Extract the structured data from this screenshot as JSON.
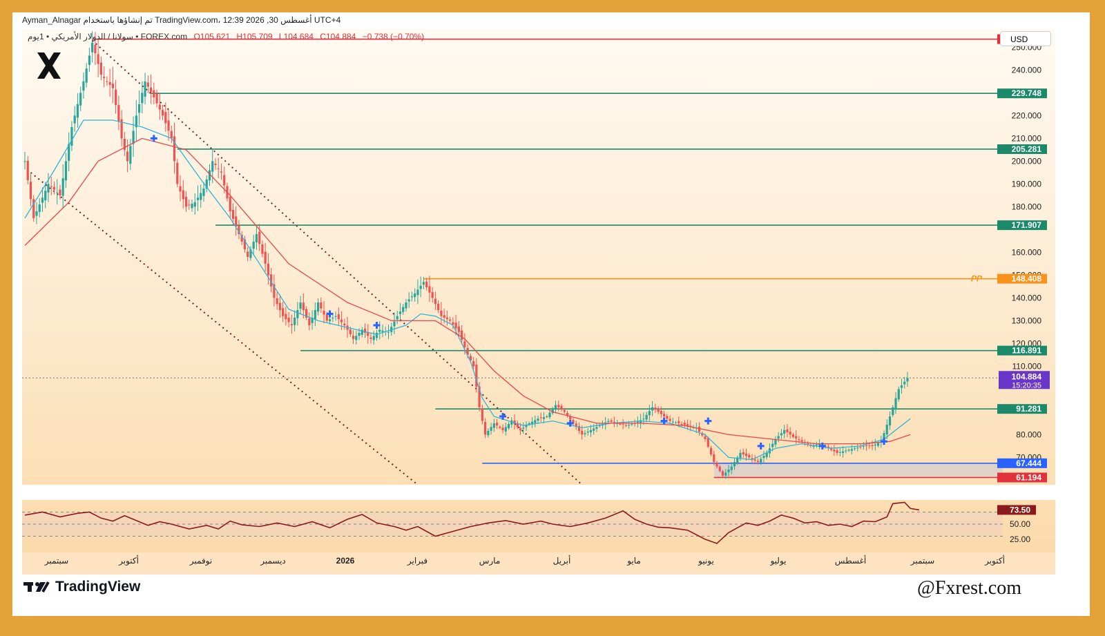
{
  "header": {
    "text": "Ayman_Alnagar تم إنشاؤها باستخدام TradingView.com، 12:39 2026 ,30 أغسطس UTC+4"
  },
  "symbol": {
    "name": "سولانا / الدولار الأمريكي • 1يوم • FOREX.com",
    "open": "O105.621",
    "high": "H105.709",
    "low": "L104.684",
    "close": "C104.884",
    "change": "−0.738 (−0.70%)"
  },
  "currency_label": "USD",
  "footer": {
    "brand": "TradingView",
    "watermark": "@Fxrest.com"
  },
  "colors": {
    "up": "#26a69a",
    "down": "#ef5350",
    "level_green": "#1b8a6b",
    "level_red": "#e0313c",
    "level_blue": "#2962ff",
    "pivot": "#f7931a",
    "ma_fast": "#2bb5d6",
    "ma_slow": "#e8474c",
    "rsi_line": "#8b1a1a",
    "marker": "#2962ff",
    "current_price": "#6a35c9"
  },
  "chart_data": [
    {
      "type": "candlestick",
      "title": "",
      "y_axis": {
        "min": 58,
        "max": 258,
        "ticks": [
          "250.000",
          "240.000",
          "220.000",
          "210.000",
          "200.000",
          "190.000",
          "180.000",
          "160.000",
          "150.000",
          "140.000",
          "130.000",
          "120.000",
          "110.000",
          "80.000",
          "70.000"
        ]
      },
      "x_axis": {
        "labels": [
          "سبتمبر",
          "أكتوبر",
          "نوفمبر",
          "ديسمبر",
          "2026",
          "فبراير",
          "مارس",
          "أبريل",
          "مايو",
          "يونيو",
          "يوليو",
          "أغسطس",
          "سبتمبر",
          "أكتوبر"
        ]
      },
      "price_path": [
        [
          0,
          200
        ],
        [
          3,
          175
        ],
        [
          8,
          190
        ],
        [
          12,
          185
        ],
        [
          16,
          215
        ],
        [
          20,
          235
        ],
        [
          23,
          252
        ],
        [
          26,
          238
        ],
        [
          30,
          232
        ],
        [
          33,
          210
        ],
        [
          35,
          200
        ],
        [
          38,
          220
        ],
        [
          41,
          235
        ],
        [
          44,
          228
        ],
        [
          47,
          220
        ],
        [
          50,
          210
        ],
        [
          52,
          190
        ],
        [
          55,
          180
        ],
        [
          58,
          182
        ],
        [
          61,
          188
        ],
        [
          64,
          200
        ],
        [
          67,
          195
        ],
        [
          70,
          178
        ],
        [
          73,
          168
        ],
        [
          76,
          158
        ],
        [
          79,
          168
        ],
        [
          82,
          155
        ],
        [
          85,
          140
        ],
        [
          88,
          132
        ],
        [
          91,
          128
        ],
        [
          94,
          138
        ],
        [
          97,
          128
        ],
        [
          100,
          138
        ],
        [
          103,
          130
        ],
        [
          106,
          132
        ],
        [
          109,
          128
        ],
        [
          112,
          122
        ],
        [
          115,
          126
        ],
        [
          118,
          122
        ],
        [
          121,
          126
        ],
        [
          124,
          125
        ],
        [
          127,
          132
        ],
        [
          130,
          138
        ],
        [
          133,
          142
        ],
        [
          136,
          147
        ],
        [
          139,
          140
        ],
        [
          142,
          132
        ],
        [
          145,
          130
        ],
        [
          148,
          125
        ],
        [
          151,
          115
        ],
        [
          153,
          110
        ],
        [
          155,
          92
        ],
        [
          157,
          80
        ],
        [
          160,
          85
        ],
        [
          163,
          82
        ],
        [
          166,
          86
        ],
        [
          169,
          82
        ],
        [
          172,
          85
        ],
        [
          175,
          87
        ],
        [
          178,
          88
        ],
        [
          181,
          93
        ],
        [
          184,
          90
        ],
        [
          187,
          85
        ],
        [
          190,
          80
        ],
        [
          193,
          82
        ],
        [
          196,
          84
        ],
        [
          199,
          86
        ],
        [
          202,
          85
        ],
        [
          205,
          84
        ],
        [
          208,
          85
        ],
        [
          211,
          87
        ],
        [
          214,
          92
        ],
        [
          217,
          89
        ],
        [
          220,
          86
        ],
        [
          223,
          85
        ],
        [
          226,
          84
        ],
        [
          229,
          83
        ],
        [
          232,
          78
        ],
        [
          235,
          68
        ],
        [
          238,
          62
        ],
        [
          241,
          66
        ],
        [
          244,
          72
        ],
        [
          247,
          70
        ],
        [
          250,
          68
        ],
        [
          253,
          72
        ],
        [
          256,
          78
        ],
        [
          259,
          82
        ],
        [
          262,
          79
        ],
        [
          265,
          77
        ],
        [
          268,
          75
        ],
        [
          271,
          76
        ],
        [
          274,
          74
        ],
        [
          277,
          72
        ],
        [
          280,
          73
        ],
        [
          283,
          74
        ],
        [
          286,
          75
        ],
        [
          289,
          75
        ],
        [
          292,
          77
        ],
        [
          295,
          88
        ],
        [
          298,
          100
        ],
        [
          301,
          104.884
        ]
      ],
      "moving_averages": [
        {
          "name": "",
          "color": "#2bb5d6",
          "points": [
            [
              0,
              175
            ],
            [
              10,
              196
            ],
            [
              20,
              218
            ],
            [
              30,
              218
            ],
            [
              40,
              215
            ],
            [
              50,
              210
            ],
            [
              60,
              192
            ],
            [
              70,
              175
            ],
            [
              80,
              155
            ],
            [
              90,
              135
            ],
            [
              100,
              130
            ],
            [
              110,
              127
            ],
            [
              120,
              124
            ],
            [
              130,
              128
            ],
            [
              135,
              133
            ],
            [
              140,
              132
            ],
            [
              146,
              128
            ],
            [
              152,
              112
            ],
            [
              156,
              96
            ],
            [
              160,
              88
            ],
            [
              170,
              84
            ],
            [
              180,
              86
            ],
            [
              190,
              83
            ],
            [
              200,
              85
            ],
            [
              210,
              86
            ],
            [
              220,
              85
            ],
            [
              232,
              80
            ],
            [
              240,
              70
            ],
            [
              248,
              69
            ],
            [
              256,
              74
            ],
            [
              265,
              76
            ],
            [
              275,
              74
            ],
            [
              285,
              75
            ],
            [
              293,
              78
            ],
            [
              302,
              87
            ]
          ]
        },
        {
          "name": "",
          "color": "#e8474c",
          "points": [
            [
              0,
              163
            ],
            [
              15,
              182
            ],
            [
              25,
              200
            ],
            [
              40,
              210
            ],
            [
              55,
              205
            ],
            [
              70,
              185
            ],
            [
              90,
              155
            ],
            [
              110,
              138
            ],
            [
              125,
              130
            ],
            [
              140,
              130
            ],
            [
              150,
              122
            ],
            [
              160,
              108
            ],
            [
              170,
              97
            ],
            [
              180,
              90
            ],
            [
              195,
              85
            ],
            [
              210,
              85
            ],
            [
              225,
              84
            ],
            [
              240,
              80
            ],
            [
              255,
              78
            ],
            [
              270,
              76
            ],
            [
              285,
              76
            ],
            [
              295,
              77
            ],
            [
              302,
              80
            ]
          ]
        }
      ],
      "levels": [
        {
          "value": 253.558,
          "label": "253.558",
          "color": "#e0313c",
          "start_index": 23
        },
        {
          "value": 229.748,
          "label": "229.748",
          "color": "#1b8a6b",
          "start_index": 43
        },
        {
          "value": 205.281,
          "label": "205.281",
          "color": "#1b8a6b",
          "start_index": 52
        },
        {
          "value": 171.907,
          "label": "171.907",
          "color": "#1b8a6b",
          "start_index": 65
        },
        {
          "value": 148.408,
          "label": "148.408",
          "color": "#f7931a",
          "start_index": 136,
          "tag": "PP"
        },
        {
          "value": 116.891,
          "label": "116.891",
          "color": "#1b8a6b",
          "start_index": 94
        },
        {
          "value": 91.281,
          "label": "91.281",
          "color": "#1b8a6b",
          "start_index": 140
        },
        {
          "value": 67.444,
          "label": "67.444",
          "color": "#2962ff",
          "start_index": 156
        },
        {
          "value": 61.194,
          "label": "61.194",
          "color": "#e0313c",
          "start_index": 235
        }
      ],
      "current_price": {
        "value": 104.884,
        "label": "104.884",
        "countdown": "15:20:35"
      },
      "trend_lines": [
        {
          "from": [
            23,
            253
          ],
          "to": [
            190,
            58
          ]
        },
        {
          "from": [
            2,
            195
          ],
          "to": [
            134,
            58
          ]
        }
      ],
      "markers": [
        [
          44,
          210
        ],
        [
          104,
          133
        ],
        [
          120,
          128
        ],
        [
          163,
          88
        ],
        [
          186,
          85
        ],
        [
          218,
          86
        ],
        [
          233,
          86
        ],
        [
          251,
          75
        ],
        [
          272,
          75
        ],
        [
          293,
          77
        ]
      ]
    },
    {
      "type": "line",
      "title": "",
      "y_axis": {
        "min": 10,
        "max": 90,
        "ticks": [
          "50.00",
          "25.00"
        ],
        "band": [
          30,
          70
        ]
      },
      "current": {
        "value": 73.5,
        "label": "73.50"
      },
      "points": [
        [
          0,
          65
        ],
        [
          6,
          70
        ],
        [
          12,
          62
        ],
        [
          18,
          68
        ],
        [
          22,
          70
        ],
        [
          26,
          60
        ],
        [
          30,
          55
        ],
        [
          34,
          64
        ],
        [
          38,
          56
        ],
        [
          42,
          48
        ],
        [
          46,
          54
        ],
        [
          50,
          50
        ],
        [
          56,
          42
        ],
        [
          62,
          48
        ],
        [
          66,
          42
        ],
        [
          70,
          55
        ],
        [
          74,
          49
        ],
        [
          80,
          46
        ],
        [
          86,
          52
        ],
        [
          92,
          46
        ],
        [
          98,
          54
        ],
        [
          104,
          44
        ],
        [
          110,
          58
        ],
        [
          115,
          66
        ],
        [
          120,
          52
        ],
        [
          126,
          46
        ],
        [
          130,
          40
        ],
        [
          134,
          46
        ],
        [
          140,
          30
        ],
        [
          146,
          38
        ],
        [
          152,
          46
        ],
        [
          158,
          52
        ],
        [
          164,
          56
        ],
        [
          170,
          50
        ],
        [
          176,
          55
        ],
        [
          180,
          50
        ],
        [
          186,
          46
        ],
        [
          192,
          52
        ],
        [
          198,
          60
        ],
        [
          204,
          72
        ],
        [
          208,
          58
        ],
        [
          212,
          50
        ],
        [
          216,
          45
        ],
        [
          220,
          44
        ],
        [
          226,
          40
        ],
        [
          232,
          25
        ],
        [
          236,
          18
        ],
        [
          240,
          36
        ],
        [
          246,
          52
        ],
        [
          250,
          48
        ],
        [
          254,
          55
        ],
        [
          258,
          65
        ],
        [
          262,
          60
        ],
        [
          266,
          52
        ],
        [
          270,
          54
        ],
        [
          274,
          48
        ],
        [
          278,
          50
        ],
        [
          282,
          46
        ],
        [
          286,
          55
        ],
        [
          290,
          54
        ],
        [
          294,
          62
        ],
        [
          296,
          84
        ],
        [
          300,
          86
        ],
        [
          302,
          76
        ],
        [
          305,
          73.5
        ]
      ]
    }
  ]
}
